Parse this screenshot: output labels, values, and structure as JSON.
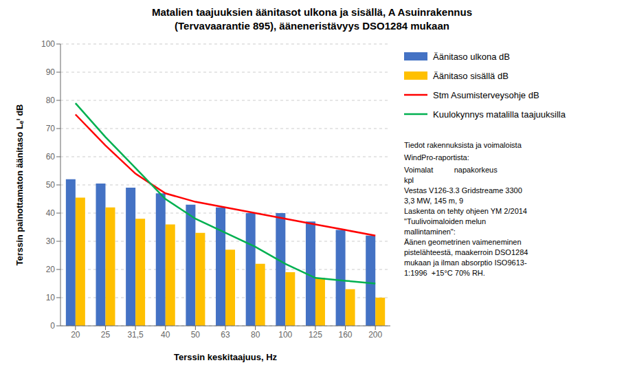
{
  "chart_data": {
    "type": "bar",
    "title": "Matalien taajuuksien äänitasot ulkona ja sisällä, A Asuinrakennus\n(Tervavaarantie 895), ääneneristävyys DSO1284 mukaan",
    "xlabel": "Terssin keskitaajuus, Hz",
    "ylabel": "Terssin painottamaton äänitaso Lₑⁱ dB",
    "categories": [
      "20",
      "25",
      "31,5",
      "40",
      "50",
      "63",
      "80",
      "100",
      "125",
      "160",
      "200"
    ],
    "series": [
      {
        "name": "Äänitaso ulkona dB",
        "type": "bar",
        "color": "#4472c4",
        "values": [
          52,
          50.5,
          49,
          47,
          43,
          42,
          40,
          40,
          37,
          34,
          32
        ]
      },
      {
        "name": "Äänitaso sisällä dB",
        "type": "bar",
        "color": "#ffc000",
        "values": [
          45.5,
          42,
          38,
          36,
          33,
          27,
          22,
          19,
          17,
          13,
          10
        ]
      },
      {
        "name": "Stm Asumisterveysohje dB",
        "type": "line",
        "color": "#ff0000",
        "values": [
          75,
          64,
          54,
          47,
          44,
          42,
          40,
          38,
          36,
          34,
          32
        ]
      },
      {
        "name": "Kuulokynnys matalilla taajuuksilla",
        "type": "line",
        "color": "#00b050",
        "values": [
          79,
          67,
          56,
          45,
          38,
          33,
          28,
          22,
          17,
          16,
          15
        ]
      }
    ],
    "ylim": [
      0,
      100
    ],
    "yticks": [
      0,
      10,
      20,
      30,
      40,
      50,
      60,
      70,
      80,
      90,
      100
    ],
    "grid": true,
    "legend": "right",
    "annotations": [
      "Tiedot rakennuksista ja voimaloista",
      "WindPro-raportista:",
      "Voimalat          napakorkeus\nkpl\nVestas V126-3.3 Gridstreame 3300\n3,3 MW, 145 m, 9\nLaskenta on tehty ohjeen YM 2/2014\n\"Tuulivoimaloiden melun\nmallintaminen\":\nÄänen geometrinen vaimeneminen\npistelähteestä, maakerroin DSO1284\nmukaan ja ilman absorptio ISO9613-\n1:1996  +15°C 70% RH."
    ]
  }
}
